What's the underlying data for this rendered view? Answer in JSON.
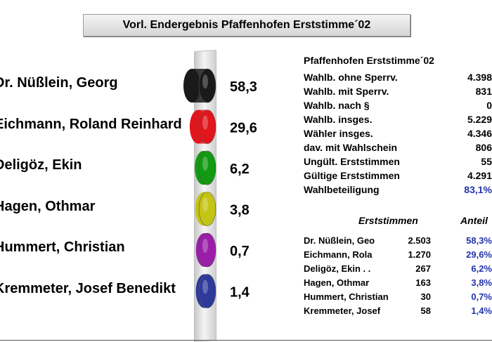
{
  "title": "Vorl. Endergebnis Pfaffenhofen Erststimme´02",
  "stats": {
    "heading": "Pfaffenhofen Erststimme´02",
    "rows": [
      {
        "label": "Wahlb. ohne Sperrv.",
        "value": "4.398"
      },
      {
        "label": "Wahlb. mit Sperrv.",
        "value": "831"
      },
      {
        "label": "Wahlb. nach §",
        "value": "0"
      },
      {
        "label": "Wahlb. insges.",
        "value": "5.229"
      },
      {
        "label": "Wähler insges.",
        "value": "4.346"
      },
      {
        "label": "dav. mit Wahlschein",
        "value": "806"
      },
      {
        "label": "Ungült. Erststimmen",
        "value": "55"
      },
      {
        "label": "Gültige Erststimmen",
        "value": "4.291"
      },
      {
        "label": "Wahlbeteiligung",
        "value": "83,1%"
      }
    ]
  },
  "results": {
    "col_votes": "Erststimmen",
    "col_share": "Anteil",
    "rows": [
      {
        "name": "Dr. Nüßlein, Geo",
        "votes": "2.503",
        "share": "58,3%"
      },
      {
        "name": "Eichmann, Rola",
        "votes": "1.270",
        "share": "29,6%"
      },
      {
        "name": "Deligöz, Ekin . .",
        "votes": "267",
        "share": "6,2%"
      },
      {
        "name": "Hagen, Othmar",
        "votes": "163",
        "share": "3,8%"
      },
      {
        "name": "Hummert, Christian",
        "votes": "30",
        "share": "0,7%"
      },
      {
        "name": "Kremmeter, Josef",
        "votes": "58",
        "share": "1,4%"
      }
    ]
  },
  "chart_data": {
    "type": "bar",
    "title": "Vorl. Endergebnis Pfaffenhofen Erststimme´02",
    "categories": [
      "Dr. Nüßlein, Georg",
      "Eichmann, Roland Reinhard",
      "Deligöz, Ekin",
      "Hagen, Othmar",
      "Hummert, Christian",
      "Kremmeter, Josef Benedikt"
    ],
    "values": [
      58.3,
      29.6,
      6.2,
      3.8,
      0.7,
      1.4
    ],
    "value_labels": [
      "58,3",
      "29,6",
      "6,2",
      "3,8",
      "0,7",
      "1,4"
    ],
    "colors": [
      "#1a1a1a",
      "#e0161c",
      "#129a12",
      "#c4c414",
      "#9a1ea8",
      "#2e3a9a"
    ]
  }
}
